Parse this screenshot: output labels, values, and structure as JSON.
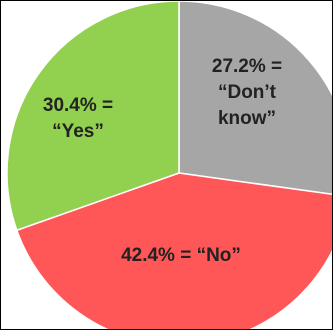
{
  "chart_data": {
    "type": "pie",
    "start_angle_deg": 0,
    "direction": "clockwise",
    "slices": [
      {
        "value": 27.2,
        "color": "#a6a6a6",
        "label_lines": [
          "27.2% =",
          "“Don’t",
          "know”"
        ]
      },
      {
        "value": 42.4,
        "color": "#ff5757",
        "label_lines": [
          "42.4% = “No”"
        ]
      },
      {
        "value": 30.4,
        "color": "#92d050",
        "label_lines": [
          "30.4% =",
          "“Yes”"
        ]
      }
    ],
    "slice_border_color": "#ffffff",
    "frame_border_color": "#000000"
  }
}
